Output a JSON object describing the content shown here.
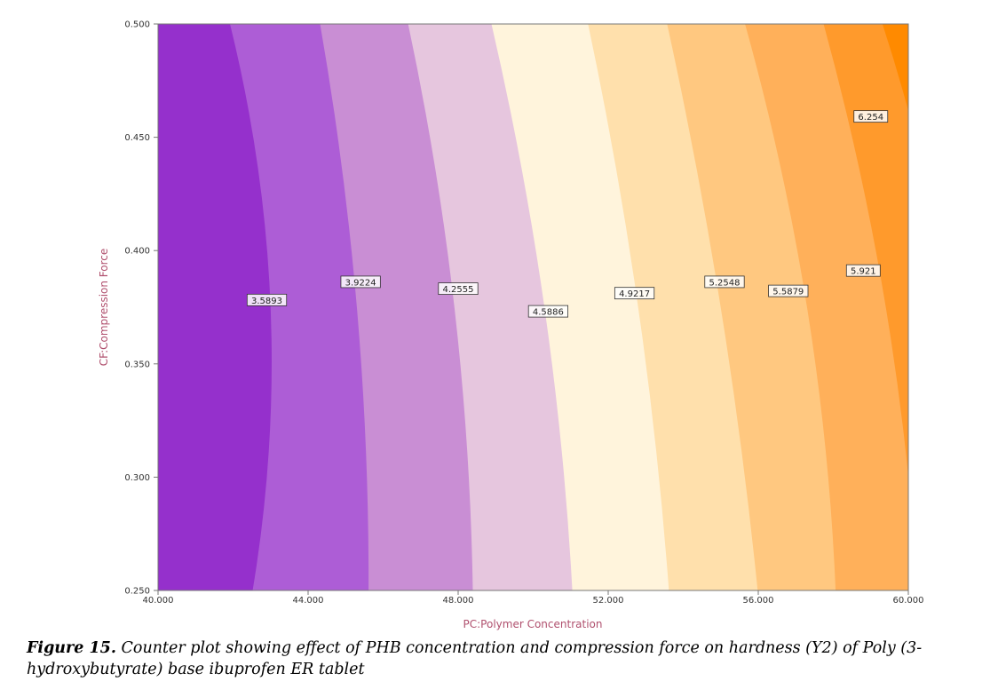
{
  "chart_data": {
    "type": "contour",
    "xlabel": "PC:Polymer Concentration",
    "ylabel": "CF:Compression Force",
    "xlim": [
      40,
      60
    ],
    "ylim": [
      0.25,
      0.5
    ],
    "x_ticks": [
      "40.000",
      "44.000",
      "48.000",
      "52.000",
      "56.000",
      "60.000"
    ],
    "y_ticks": [
      "0.250",
      "0.300",
      "0.350",
      "0.400",
      "0.450",
      "0.500"
    ],
    "colors": [
      "#9530cc",
      "#ad5dd6",
      "#c98ed4",
      "#e6c6de",
      "#fff4dc",
      "#ffe0ac",
      "#ffc880",
      "#ffb05a",
      "#ff9a2c",
      "#ff8a00"
    ],
    "contours": [
      {
        "label": "3.5893",
        "x": 42.9,
        "y": 0.378,
        "bottom_x": 42.3,
        "mid_x": 43.0,
        "top_x": 41.6
      },
      {
        "label": "3.9224",
        "x": 45.4,
        "y": 0.386,
        "bottom_x": 45.6,
        "mid_x": 45.3,
        "top_x": 44.1
      },
      {
        "label": "4.2555",
        "x": 48.0,
        "y": 0.383,
        "bottom_x": 48.4,
        "mid_x": 47.9,
        "top_x": 46.4
      },
      {
        "label": "4.5886",
        "x": 50.4,
        "y": 0.373,
        "bottom_x": 51.1,
        "mid_x": 50.3,
        "top_x": 48.6
      },
      {
        "label": "4.9217",
        "x": 52.7,
        "y": 0.381,
        "bottom_x": 53.7,
        "mid_x": 52.8,
        "top_x": 51.2
      },
      {
        "label": "5.2548",
        "x": 55.1,
        "y": 0.386,
        "bottom_x": 56.1,
        "mid_x": 55.0,
        "top_x": 53.3
      },
      {
        "label": "5.5879",
        "x": 56.8,
        "y": 0.382,
        "bottom_x": 58.1,
        "mid_x": 57.3,
        "top_x": 55.3
      },
      {
        "label": "5.921",
        "x": 58.8,
        "y": 0.391,
        "bottom_x": 60.3,
        "mid_x": 59.4,
        "top_x": 57.4
      },
      {
        "label": "6.254",
        "x": 59.0,
        "y": 0.459,
        "bottom_x": 61.5,
        "mid_x": 61.1,
        "top_x": 58.9
      }
    ]
  },
  "caption": {
    "label": "Figure 15.",
    "text": "Counter plot showing effect of PHB concentration and compression force on hardness (Y2) of Poly (3-hydroxybutyrate) base ibuprofen ER tablet"
  }
}
